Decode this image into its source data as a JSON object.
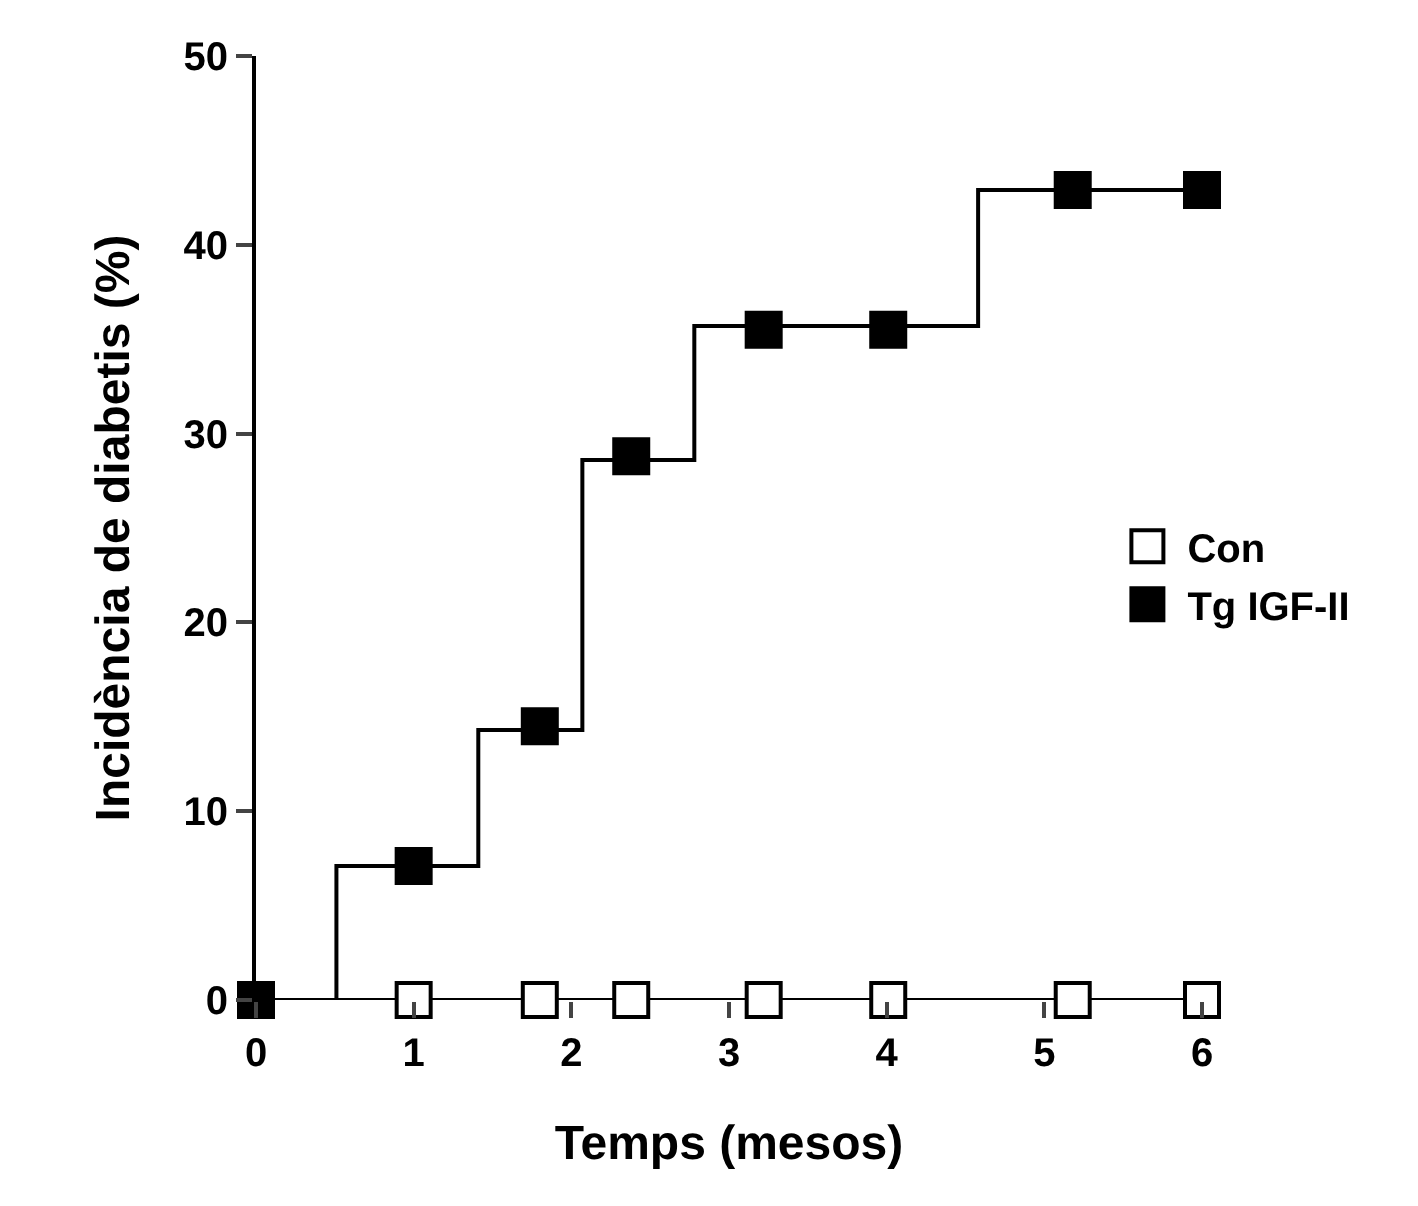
{
  "chart_data": {
    "type": "step",
    "xlabel": "Temps (mesos)",
    "ylabel": "Incidència de diabetis (%)",
    "xlim": [
      0,
      6
    ],
    "ylim": [
      0,
      50
    ],
    "xticks": [
      0,
      1,
      2,
      3,
      4,
      5,
      6
    ],
    "yticks": [
      0,
      10,
      20,
      30,
      40,
      50
    ],
    "legend": "right",
    "marker": "square",
    "series": [
      {
        "color": "#000000",
        "marker": "none",
        "x": [
          0,
          6
        ],
        "values": [
          0,
          0
        ]
      },
      {
        "name": "Con",
        "type": "scatter",
        "color": "#ffffff",
        "x": [
          1,
          1.8,
          2.38,
          3.22,
          4.01,
          5.18,
          6
        ],
        "values": [
          0,
          0,
          0,
          0,
          0,
          0,
          0
        ]
      },
      {
        "color": "#000000",
        "marker": "none",
        "x": [
          0,
          0.51,
          1.41,
          2.07,
          2.78,
          4.58,
          6
        ],
        "values": [
          0,
          7.1,
          14.3,
          28.6,
          35.7,
          42.9,
          42.9
        ]
      },
      {
        "name": "Tg IGF-II",
        "type": "scatter",
        "color": "#000000",
        "x": [
          0,
          1,
          1.8,
          2.38,
          3.22,
          4.01,
          5.18,
          6
        ],
        "values": [
          0,
          7.1,
          14.5,
          28.8,
          35.5,
          35.5,
          42.9,
          42.9
        ]
      }
    ]
  }
}
